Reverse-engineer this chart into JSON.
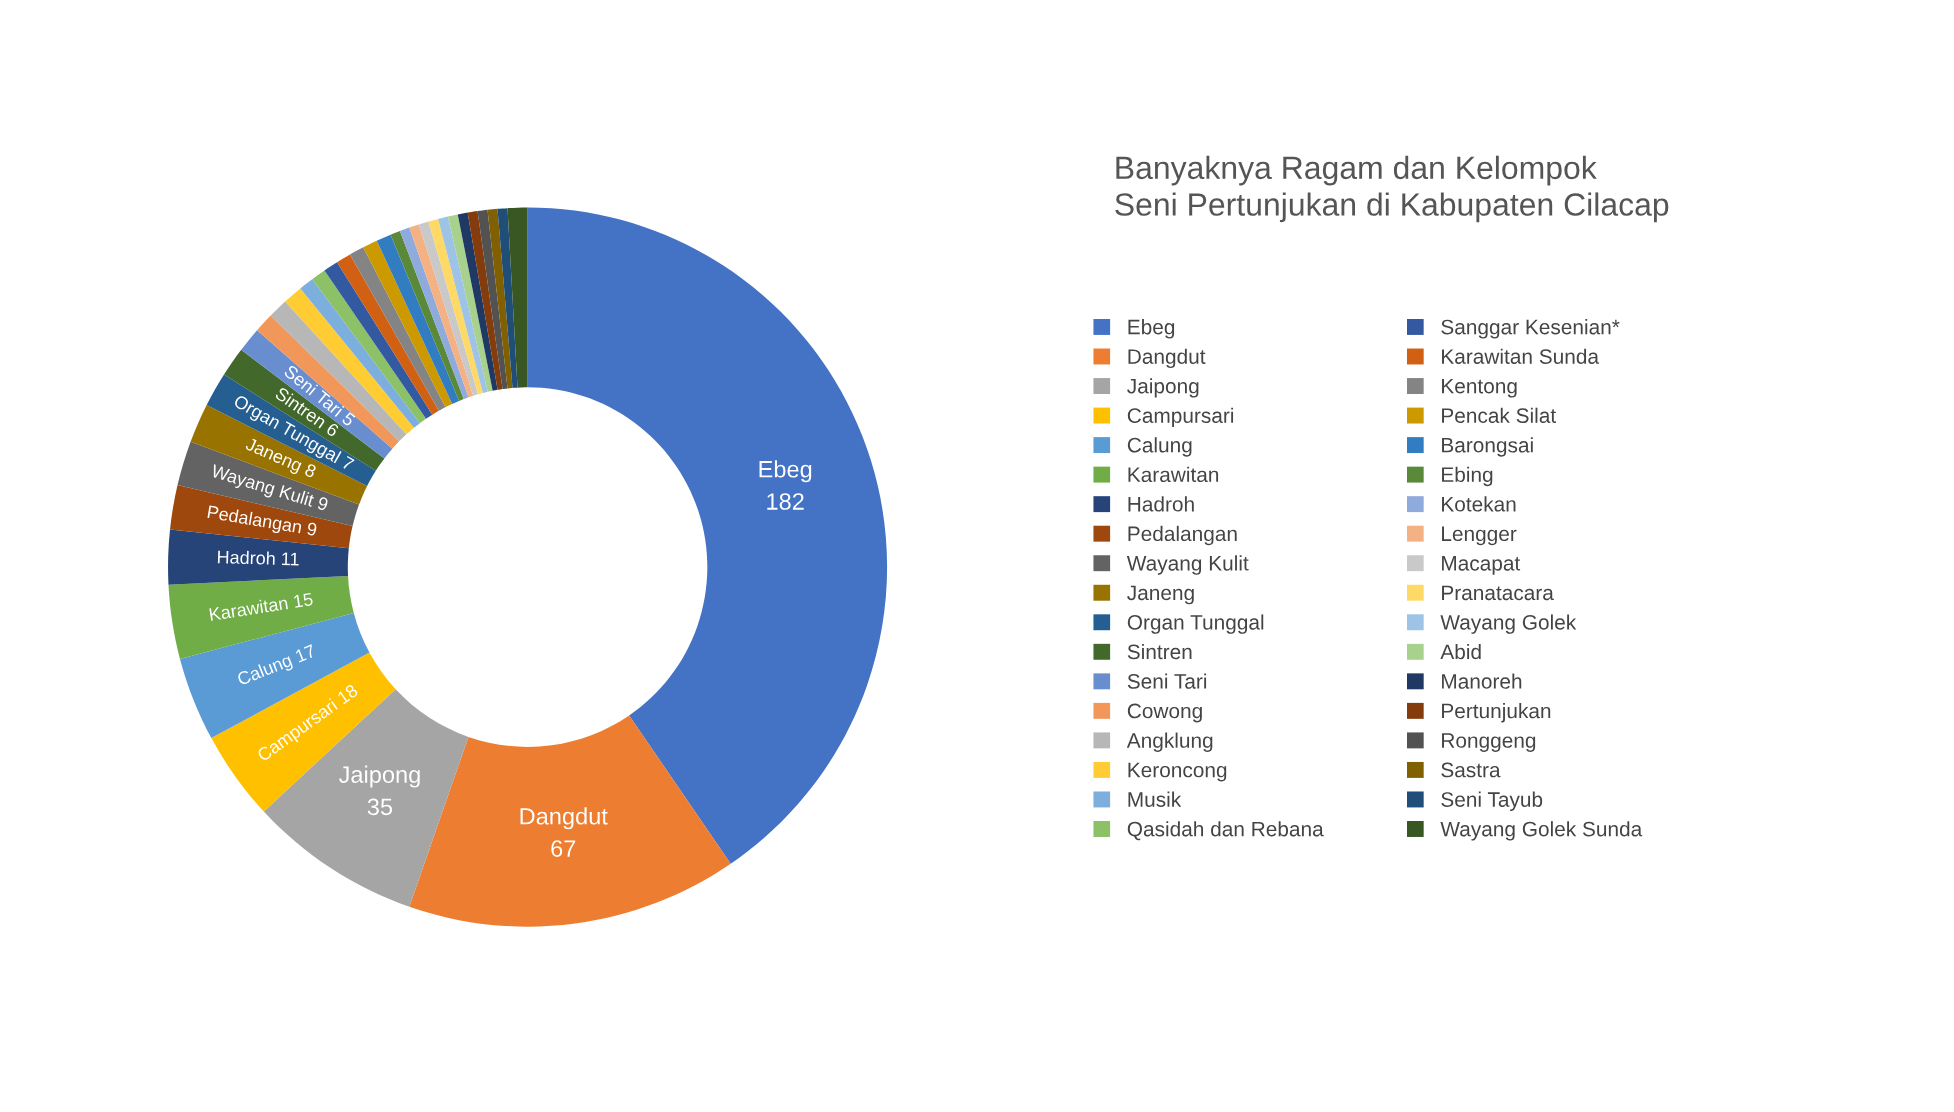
{
  "chart_data": {
    "type": "donut",
    "title": "Banyaknya Ragam dan Kelompok\nSeni Pertunjukan di Kabupaten Cilacap",
    "categories": [
      "Ebeg",
      "Dangdut",
      "Jaipong",
      "Campursari",
      "Calung",
      "Karawitan",
      "Hadroh",
      "Pedalangan",
      "Wayang Kulit",
      "Janeng",
      "Organ Tunggal",
      "Sintren",
      "Seni Tari",
      "Cowong",
      "Angklung",
      "Keroncong",
      "Musik",
      "Qasidah dan Rebana",
      "Sanggar Kesenian*",
      "Karawitan Sunda",
      "Kentong",
      "Pencak Silat",
      "Barongsai",
      "Ebing",
      "Kotekan",
      "Lengger",
      "Macapat",
      "Pranatacara",
      "Wayang Golek",
      "Abid",
      "Manoreh",
      "Pertunjukan",
      "Ronggeng",
      "Sastra",
      "Seni Tayub",
      "Wayang Golek Sunda"
    ],
    "values": [
      182,
      67,
      35,
      18,
      17,
      15,
      11,
      9,
      9,
      8,
      7,
      6,
      5,
      4,
      4,
      4,
      3,
      3,
      3,
      3,
      3,
      3,
      3,
      2,
      2,
      2,
      2,
      2,
      2,
      2,
      2,
      2,
      2,
      2,
      2,
      4
    ],
    "value_labels": [
      "Ebeg\n182",
      "Dangdut\n67",
      "Jaipong\n35",
      "Campursari 18",
      "Calung 17",
      "Karawitan 15",
      "Hadroh 11",
      "Pedalangan 9",
      "Wayang Kulit 9",
      "Janeng 8",
      "Organ Tunggal 7",
      "Sintren 6",
      "Seni Tari 5",
      null,
      null,
      null,
      null,
      null,
      null,
      null,
      null,
      null,
      null,
      null,
      null,
      null,
      null,
      null,
      null,
      null,
      null,
      null,
      null,
      null,
      null,
      null
    ],
    "colors": [
      "#4472c4",
      "#ed7d31",
      "#a5a5a5",
      "#ffc000",
      "#5b9bd5",
      "#70ad47",
      "#264478",
      "#9e480e",
      "#636363",
      "#997300",
      "#255e91",
      "#43682b",
      "#698ed0",
      "#f1975a",
      "#b7b7b7",
      "#ffcd33",
      "#7cafdd",
      "#8cc168",
      "#335aa1",
      "#d26012",
      "#848484",
      "#cc9a00",
      "#327dc2",
      "#5a8a39",
      "#8faadc",
      "#f4b183",
      "#c9c9c9",
      "#ffd966",
      "#9dc3e6",
      "#a9d18e",
      "#203864",
      "#843c0c",
      "#525252",
      "#806000",
      "#1f4e79",
      "#385723"
    ],
    "legend": "right"
  }
}
